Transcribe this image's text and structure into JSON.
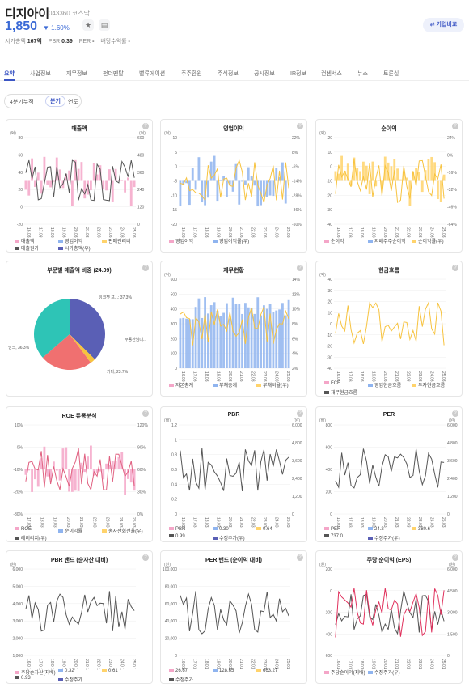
{
  "header": {
    "name": "디지아이",
    "code": "043360 코스닥",
    "price": "1,850",
    "change": "▼ 1.60%",
    "stats": [
      {
        "label": "시가총액",
        "value": "167억"
      },
      {
        "label": "PBR",
        "value": "0.39"
      },
      {
        "label": "PER",
        "value": "-"
      },
      {
        "label": "배당수익률",
        "value": "-"
      }
    ],
    "compare_label": "⇄ 기업비교"
  },
  "tabs": [
    "요약",
    "사업정보",
    "재무정보",
    "펀더멘탈",
    "밸류에이션",
    "주주환원",
    "주식정보",
    "공시정보",
    "IR정보",
    "컨센서스",
    "뉴스",
    "토론실"
  ],
  "period": [
    "4분기누적",
    "분기",
    "연도"
  ],
  "cards": [
    {
      "title": "매출액",
      "yl": "(억)",
      "yr": "(억)",
      "left_ticks": [
        "80",
        "60",
        "40",
        "20",
        "0",
        "-20"
      ],
      "right_ticks": [
        "600",
        "480",
        "360",
        "240",
        "120",
        "0"
      ],
      "x_ticks": [
        "16.03",
        "17.03",
        "18.03",
        "19.03",
        "20.03",
        "21.03",
        "22.03",
        "23.03",
        "24.03",
        "25.03"
      ],
      "legend": [
        "매출액",
        "영업이익",
        "판매관리비",
        "매출원가",
        "시가총액(우)"
      ]
    },
    {
      "title": "영업이익",
      "yl": "(억)",
      "yr": "",
      "left_ticks": [
        "10",
        "5",
        "0",
        "-5",
        "-10",
        "-15",
        "-20"
      ],
      "right_ticks": [
        "22%",
        "8%",
        "-6%",
        "-14%",
        "-28%",
        "-36%",
        "-50%"
      ],
      "x_ticks": [
        "16.03",
        "17.03",
        "18.03",
        "19.03",
        "20.03",
        "21.03",
        "22.03",
        "23.03",
        "24.03",
        "25.03"
      ],
      "legend": [
        "영업이익",
        "영업이익률(우)"
      ]
    },
    {
      "title": "순이익",
      "yl": "(억)",
      "yr": "",
      "left_ticks": [
        "20",
        "10",
        "0",
        "-10",
        "-20",
        "-30",
        "-40"
      ],
      "right_ticks": [
        "24%",
        "0%",
        "-16%",
        "-32%",
        "-46%",
        "-64%"
      ],
      "x_ticks": [
        "16.03",
        "17.03",
        "18.03",
        "19.03",
        "20.03",
        "21.03",
        "22.03",
        "23.03",
        "24.03",
        "25.03"
      ],
      "legend": [
        "순이익",
        "지배주주순이익",
        "순이익률(우)"
      ]
    },
    {
      "title": "부문별 매출액 비중 (24.09)",
      "slices": [
        {
          "label": "잉크젯 프...: 37.3%",
          "value": 37.3,
          "color": "#5a5fb5"
        },
        {
          "label": "부동산임대...",
          "value": 2.4,
          "color": "#f7c33f"
        },
        {
          "label": "기타, 23.7%",
          "value": 23.7,
          "color": "#f07070"
        },
        {
          "label": "잉크, 36.3%",
          "value": 36.3,
          "color": "#2ec4b6"
        }
      ]
    },
    {
      "title": "재무현황",
      "yl": "(억)",
      "yr": "",
      "left_ticks": [
        "600",
        "500",
        "400",
        "300",
        "200",
        "100",
        "0"
      ],
      "right_ticks": [
        "14%",
        "12%",
        "10%",
        "8%",
        "6%",
        "4%",
        "2%"
      ],
      "x_ticks": [
        "16.03",
        "17.03",
        "18.03",
        "19.03",
        "20.03",
        "21.03",
        "22.03",
        "23.03",
        "24.03",
        "25.03"
      ],
      "legend": [
        "자본총계",
        "부채총계",
        "부채비율(우)"
      ]
    },
    {
      "title": "현금흐름",
      "yl": "(억)",
      "yr": "",
      "left_ticks": [
        "40",
        "30",
        "20",
        "10",
        "0",
        "-10",
        "-20",
        "-30",
        "-40"
      ],
      "right_ticks": [],
      "x_ticks": [
        "16.03",
        "17.03",
        "18.03",
        "19.03",
        "20.03",
        "21.03",
        "22.03",
        "23.03",
        "24.03",
        "25.03"
      ],
      "legend": [
        "FCF",
        "영업현금흐름",
        "투자현금흐름",
        "재무현금흐름"
      ]
    },
    {
      "title": "ROE 듀퐁분석",
      "yl": "",
      "yr": "",
      "left_ticks": [
        "10%",
        "0%",
        "-10%",
        "-20%",
        "-30%"
      ],
      "right_ticks": [
        "120%",
        "90%",
        "60%",
        "30%",
        "0%"
      ],
      "x_ticks": [
        "17.03",
        "18.03",
        "19.03",
        "20.03",
        "21.03",
        "22.03",
        "23.03",
        "24.03",
        "25.03"
      ],
      "legend": [
        "ROE",
        "순이익률",
        "총자산회전율(우)",
        "레버리지(우)"
      ]
    },
    {
      "title": "PBR",
      "yl": "(배)",
      "yr": "(원)",
      "left_ticks": [
        "1.2",
        "1",
        "0.8",
        "0.6",
        "0.4",
        "0.2",
        "0"
      ],
      "right_ticks": [
        "6,000",
        "4,800",
        "3,600",
        "2,400",
        "1,200",
        "0"
      ],
      "x_ticks": [
        "16.03",
        "17.03",
        "18.03",
        "19.03",
        "20.03",
        "21.03",
        "22.03",
        "23.03",
        "24.03",
        "25.03"
      ],
      "legend": [
        "PBR",
        "0.30",
        "0.64",
        "0.99",
        "수정주가(우)"
      ]
    },
    {
      "title": "PER",
      "yl": "(배)",
      "yr": "(원)",
      "left_ticks": [
        "800",
        "600",
        "400",
        "200",
        "0"
      ],
      "right_ticks": [
        "6,000",
        "4,800",
        "3,600",
        "2,400",
        "1,200",
        "0"
      ],
      "x_ticks": [
        "16.03",
        "17.03",
        "18.03",
        "19.03",
        "20.03",
        "21.03",
        "22.03",
        "23.03",
        "24.03",
        "25.03"
      ],
      "legend": [
        "PER",
        "24.2",
        "380.6",
        "737.0",
        "수정주가(우)"
      ]
    },
    {
      "title": "PBR 밴드 (순자산 대비)",
      "yl": "(원)",
      "yr": "",
      "left_ticks": [
        "6,000",
        "5,000",
        "4,000",
        "3,000",
        "2,000",
        "1,000"
      ],
      "right_ticks": [],
      "x_ticks": [
        "16.0 1",
        "17.0 1",
        "18.0 1",
        "19.0 1",
        "20.0 1",
        "21.0 1",
        "22.0 1",
        "23.0 1",
        "24.0 1",
        "25.0 1"
      ],
      "legend": [
        "주당순자산(지배)",
        "0.32",
        "0.61",
        "0.93",
        "수정주가"
      ]
    },
    {
      "title": "PER 밴드 (순이익 대비)",
      "yl": "(원)",
      "yr": "",
      "left_ticks": [
        "100,000",
        "80,000",
        "60,000",
        "40,000",
        "20,000",
        "0"
      ],
      "right_ticks": [],
      "x_ticks": [
        "16.01",
        "17.01",
        "18.01",
        "19.01",
        "20.01",
        "21.01",
        "22.01",
        "23.01",
        "24.01",
        "25.01"
      ],
      "legend": [
        "26.67",
        "128.65",
        "663.27",
        "수정주가"
      ]
    },
    {
      "title": "주당 순이익 (EPS)",
      "yl": "(원)",
      "yr": "(원)",
      "left_ticks": [
        "200",
        "0",
        "-200",
        "-400",
        "-600"
      ],
      "right_ticks": [
        "6,000",
        "4,500",
        "3,000",
        "1,500",
        "0"
      ],
      "x_ticks": [
        "16.01",
        "17.01",
        "18.01",
        "19.01",
        "20.01",
        "21.01",
        "22.01",
        "23.01",
        "24.01",
        "25.01"
      ],
      "legend": [
        "주당순이익(지배)",
        "수정주가(우)"
      ]
    }
  ]
}
